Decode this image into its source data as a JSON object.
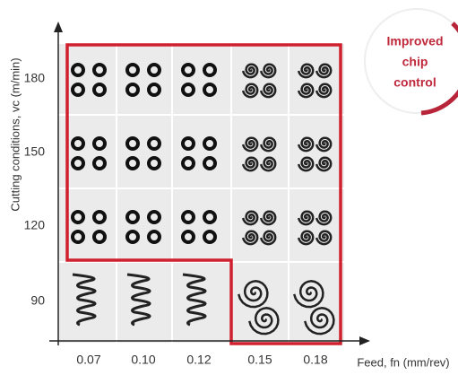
{
  "y_axis": {
    "label": "Cutting conditions, vc (m/min)",
    "ticks": [
      "180",
      "150",
      "120",
      "90"
    ]
  },
  "x_axis": {
    "label": "Feed, fn (mm/rev)",
    "ticks": [
      "0.07",
      "0.10",
      "0.12",
      "0.15",
      "0.18"
    ]
  },
  "badge": {
    "lines": [
      "Improved",
      "chip",
      "control"
    ]
  }
}
